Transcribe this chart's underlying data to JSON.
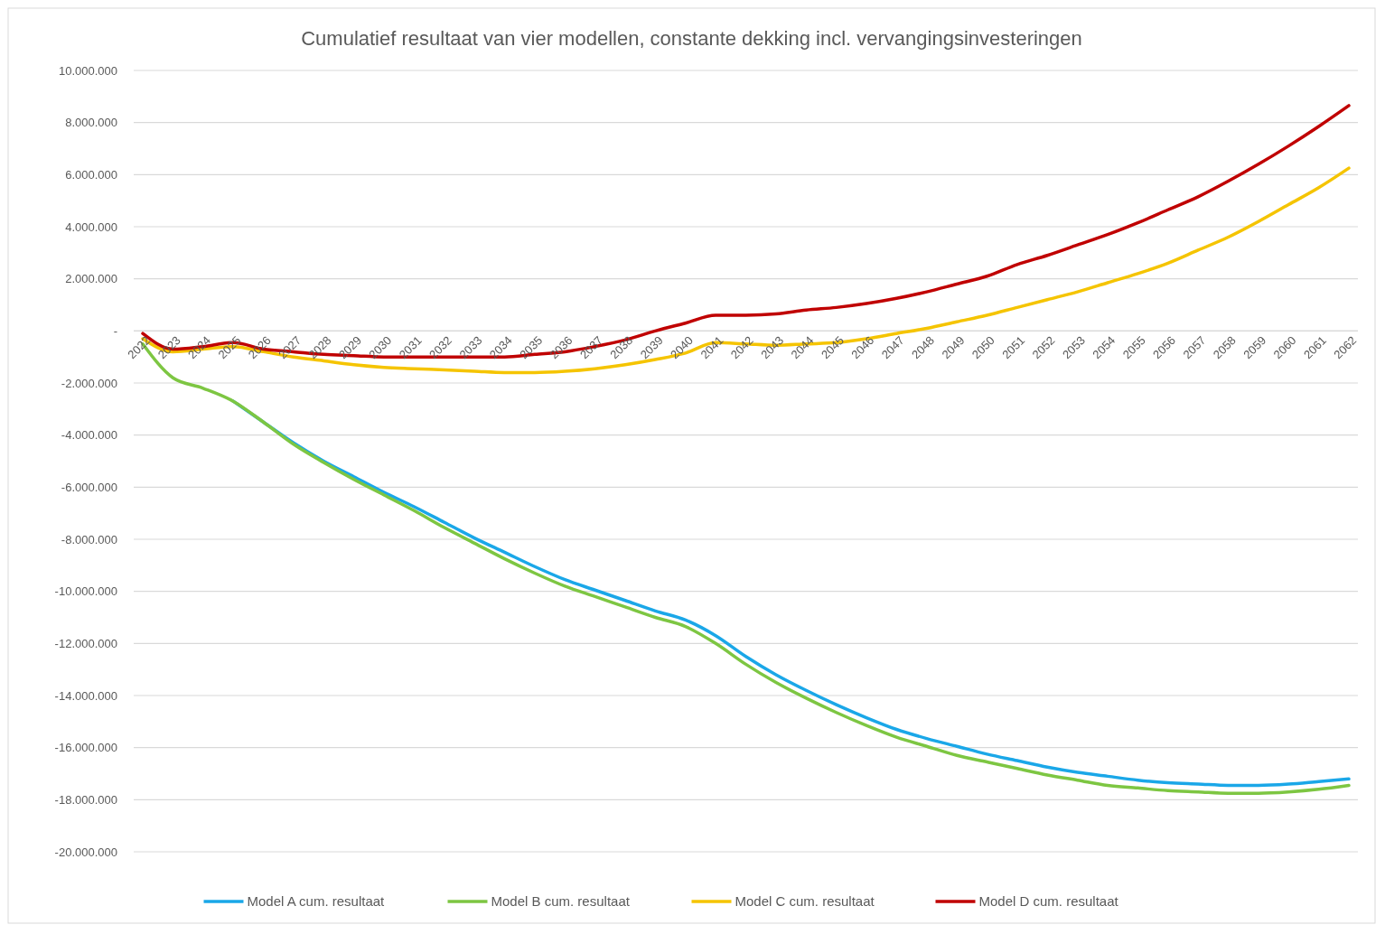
{
  "chart_data": {
    "type": "line",
    "title": "Cumulatief resultaat van vier modellen, constante dekking incl. vervangingsinvesteringen",
    "categories": [
      "2022",
      "2023",
      "2024",
      "2025",
      "2026",
      "2027",
      "2028",
      "2029",
      "2030",
      "2031",
      "2032",
      "2033",
      "2034",
      "2035",
      "2036",
      "2037",
      "2038",
      "2039",
      "2040",
      "2041",
      "2042",
      "2043",
      "2044",
      "2045",
      "2046",
      "2047",
      "2048",
      "2049",
      "2050",
      "2051",
      "2052",
      "2053",
      "2054",
      "2055",
      "2056",
      "2057",
      "2058",
      "2059",
      "2060",
      "2061",
      "2062"
    ],
    "ylim": [
      -20000000,
      10000000
    ],
    "yticks": [
      {
        "value": -20000000,
        "label": "-20.000.000"
      },
      {
        "value": -18000000,
        "label": "-18.000.000"
      },
      {
        "value": -16000000,
        "label": "-16.000.000"
      },
      {
        "value": -14000000,
        "label": "-14.000.000"
      },
      {
        "value": -12000000,
        "label": "-12.000.000"
      },
      {
        "value": -10000000,
        "label": "-10.000.000"
      },
      {
        "value": -8000000,
        "label": "-8.000.000"
      },
      {
        "value": -6000000,
        "label": "-6.000.000"
      },
      {
        "value": -4000000,
        "label": "-4.000.000"
      },
      {
        "value": -2000000,
        "label": "-2.000.000"
      },
      {
        "value": 0,
        "label": "-"
      },
      {
        "value": 2000000,
        "label": "2.000.000"
      },
      {
        "value": 4000000,
        "label": "4.000.000"
      },
      {
        "value": 6000000,
        "label": "6.000.000"
      },
      {
        "value": 8000000,
        "label": "8.000.000"
      },
      {
        "value": 10000000,
        "label": "10.000.000"
      }
    ],
    "grid": "y",
    "legend": "bottom",
    "marker": "none",
    "line_style": "solid",
    "series": [
      {
        "name": "Model A cum. resultaat",
        "color": "#1aa7e8",
        "values": [
          null,
          null,
          null,
          -2700000,
          -3500000,
          -4300000,
          -5000000,
          -5600000,
          -6200000,
          -6750000,
          -7350000,
          -7950000,
          -8500000,
          -9050000,
          -9550000,
          -9950000,
          -10350000,
          -10750000,
          -11100000,
          -11700000,
          -12500000,
          -13200000,
          -13800000,
          -14350000,
          -14850000,
          -15300000,
          -15650000,
          -15950000,
          -16250000,
          -16500000,
          -16750000,
          -16950000,
          -17100000,
          -17250000,
          -17350000,
          -17400000,
          -17450000,
          -17450000,
          -17400000,
          -17300000,
          -17200000
        ]
      },
      {
        "name": "Model B cum. resultaat",
        "color": "#7dc642",
        "values": [
          -500000,
          -1800000,
          -2200000,
          -2700000,
          -3500000,
          -4350000,
          -5050000,
          -5700000,
          -6300000,
          -6900000,
          -7550000,
          -8150000,
          -8750000,
          -9300000,
          -9800000,
          -10200000,
          -10600000,
          -11000000,
          -11350000,
          -12000000,
          -12800000,
          -13500000,
          -14100000,
          -14650000,
          -15150000,
          -15600000,
          -15950000,
          -16300000,
          -16550000,
          -16800000,
          -17050000,
          -17250000,
          -17450000,
          -17550000,
          -17650000,
          -17700000,
          -17750000,
          -17750000,
          -17700000,
          -17600000,
          -17450000
        ]
      },
      {
        "name": "Model C cum. resultaat",
        "color": "#f5c400",
        "values": [
          -300000,
          -800000,
          -700000,
          -600000,
          -800000,
          -1000000,
          -1150000,
          -1300000,
          -1400000,
          -1450000,
          -1500000,
          -1550000,
          -1600000,
          -1600000,
          -1550000,
          -1450000,
          -1300000,
          -1100000,
          -850000,
          -450000,
          -500000,
          -550000,
          -500000,
          -450000,
          -300000,
          -100000,
          100000,
          350000,
          600000,
          900000,
          1200000,
          1500000,
          1850000,
          2200000,
          2600000,
          3100000,
          3600000,
          4200000,
          4850000,
          5500000,
          6250000
        ]
      },
      {
        "name": "Model D cum. resultaat",
        "color": "#c00000",
        "values": [
          -100000,
          -700000,
          -600000,
          -450000,
          -700000,
          -800000,
          -900000,
          -950000,
          -1000000,
          -1000000,
          -1000000,
          -1000000,
          -1000000,
          -900000,
          -800000,
          -600000,
          -350000,
          0,
          300000,
          600000,
          600000,
          650000,
          800000,
          900000,
          1050000,
          1250000,
          1500000,
          1800000,
          2100000,
          2550000,
          2900000,
          3300000,
          3700000,
          4150000,
          4650000,
          5150000,
          5750000,
          6400000,
          7100000,
          7850000,
          8650000
        ]
      }
    ]
  }
}
